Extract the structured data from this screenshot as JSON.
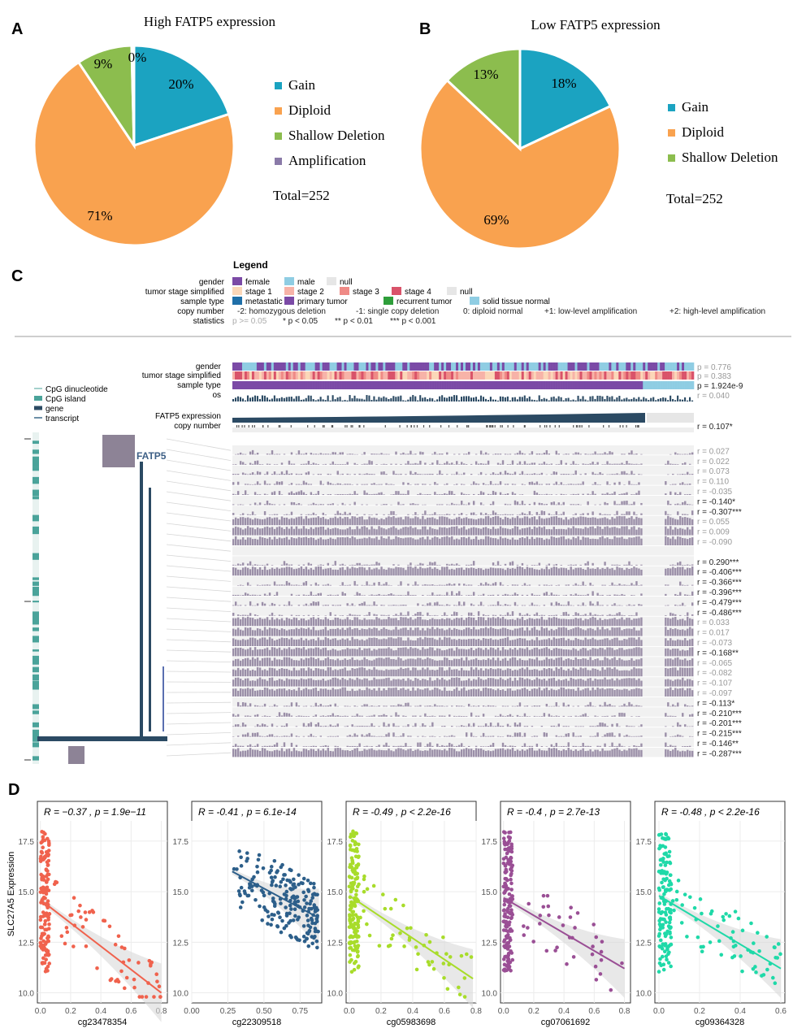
{
  "colors": {
    "gain": "#1ba3c1",
    "diploid": "#f9a24f",
    "shallow": "#8cbd4e",
    "amplification": "#8a7aa8",
    "purple": "#7b4aa6",
    "lightblue": "#8fcde3",
    "grey": "#e6e6e6",
    "bar": "#9b8fa8",
    "navy": "#2b4a63",
    "teal": "#4aa39a"
  },
  "panels": {
    "A": {
      "letter": "A"
    },
    "B": {
      "letter": "B"
    },
    "C": {
      "letter": "C"
    },
    "D": {
      "letter": "D"
    }
  },
  "chart_data": [
    {
      "type": "pie",
      "panel": "A",
      "title": "High FATP5 expression",
      "slices": [
        {
          "label": "Gain",
          "value": 20,
          "text": "20%",
          "color": "#1ba3c1"
        },
        {
          "label": "Diploid",
          "value": 71,
          "text": "71%",
          "color": "#f9a24f"
        },
        {
          "label": "Shallow Deletion",
          "value": 9,
          "text": "9%",
          "color": "#8cbd4e"
        },
        {
          "label": "Amplification",
          "value": 0.4,
          "text": "0%",
          "color": "#8a7aa8"
        }
      ],
      "legend": [
        "Gain",
        "Diploid",
        "Shallow Deletion",
        "Amplification"
      ],
      "total": "Total=252"
    },
    {
      "type": "pie",
      "panel": "B",
      "title": "Low FATP5 expression",
      "slices": [
        {
          "label": "Gain",
          "value": 18,
          "text": "18%",
          "color": "#1ba3c1"
        },
        {
          "label": "Diploid",
          "value": 69,
          "text": "69%",
          "color": "#f9a24f"
        },
        {
          "label": "Shallow Deletion",
          "value": 13,
          "text": "13%",
          "color": "#8cbd4e"
        }
      ],
      "legend": [
        "Gain",
        "Diploid",
        "Shallow Deletion"
      ],
      "total": "Total=252"
    },
    {
      "type": "heatmap",
      "panel": "C",
      "legend_title": "Legend",
      "legend_rows": [
        {
          "label": "gender",
          "items": [
            {
              "text": "female",
              "color": "#7b4aa6"
            },
            {
              "text": "male",
              "color": "#8fcde3"
            },
            {
              "text": "null",
              "color": "#e6e6e6"
            }
          ]
        },
        {
          "label": "tumor stage simplified",
          "items": [
            {
              "text": "stage 1",
              "color": "#fbd7b8"
            },
            {
              "text": "stage 2",
              "color": "#f7b3a8"
            },
            {
              "text": "stage 3",
              "color": "#ef8a86"
            },
            {
              "text": "stage 4",
              "color": "#d9536a"
            },
            {
              "text": "null",
              "color": "#e6e6e6"
            }
          ]
        },
        {
          "label": "sample type",
          "items": [
            {
              "text": "metastatic",
              "color": "#1f6fa8"
            },
            {
              "text": "primary tumor",
              "color": "#7b4aa6"
            },
            {
              "text": "recurrent tumor",
              "color": "#2e9e3a"
            },
            {
              "text": "solid tissue normal",
              "color": "#8fcde3"
            }
          ]
        },
        {
          "label": "copy number",
          "items": [
            {
              "text": "-2: homozygous deletion",
              "color": ""
            },
            {
              "text": "-1: single copy deletion",
              "color": ""
            },
            {
              "text": "0: diploid normal",
              "color": ""
            },
            {
              "text": "+1: low-level amplification",
              "color": ""
            },
            {
              "text": "+2: high-level amplification",
              "color": ""
            }
          ]
        },
        {
          "label": "statistics",
          "items": [
            {
              "text": "p >= 0.05",
              "color": ""
            },
            {
              "text": "* p < 0.05",
              "color": ""
            },
            {
              "text": "** p < 0.01",
              "color": ""
            },
            {
              "text": "*** p < 0.001",
              "color": ""
            }
          ]
        }
      ],
      "track_legend": [
        "CpG dinucleotide",
        "CpG island",
        "gene",
        "transcript"
      ],
      "gene_label": "FATP5",
      "annotation_tracks": [
        {
          "label": "gender",
          "stat": "p = 0.776",
          "significant": false
        },
        {
          "label": "tumor stage simplified",
          "stat": "p = 0.383",
          "significant": false
        },
        {
          "label": "sample type",
          "stat": "p = 1.924e-9",
          "significant": true
        },
        {
          "label": "os",
          "stat": "r = 0.040",
          "significant": false
        },
        {
          "label": "FATP5 expression",
          "stat": "",
          "significant": false
        },
        {
          "label": "copy number",
          "stat": "r = 0.107*",
          "significant": true
        }
      ],
      "probe_correlations": [
        {
          "stat": "r = 0.027",
          "significant": false
        },
        {
          "stat": "r = 0.022",
          "significant": false
        },
        {
          "stat": "r = 0.073",
          "significant": false
        },
        {
          "stat": "r = 0.110",
          "significant": false
        },
        {
          "stat": "r = -0.035",
          "significant": false
        },
        {
          "stat": "r = -0.140*",
          "significant": true
        },
        {
          "stat": "r = -0.307***",
          "significant": true
        },
        {
          "stat": "r = 0.055",
          "significant": false
        },
        {
          "stat": "r = 0.009",
          "significant": false
        },
        {
          "stat": "r = -0.090",
          "significant": false
        },
        {
          "stat": "",
          "significant": false
        },
        {
          "stat": "r = 0.290***",
          "significant": true
        },
        {
          "stat": "r = -0.406***",
          "significant": true
        },
        {
          "stat": "r = -0.366***",
          "significant": true
        },
        {
          "stat": "r = -0.396***",
          "significant": true
        },
        {
          "stat": "r = -0.479***",
          "significant": true
        },
        {
          "stat": "r = -0.486***",
          "significant": true
        },
        {
          "stat": "r = 0.033",
          "significant": false
        },
        {
          "stat": "r = 0.017",
          "significant": false
        },
        {
          "stat": "r = -0.073",
          "significant": false
        },
        {
          "stat": "r = -0.168**",
          "significant": true
        },
        {
          "stat": "r = -0.065",
          "significant": false
        },
        {
          "stat": "r = -0.082",
          "significant": false
        },
        {
          "stat": "r = -0.107",
          "significant": false
        },
        {
          "stat": "r = -0.097",
          "significant": false
        },
        {
          "stat": "r = -0.113*",
          "significant": true
        },
        {
          "stat": "r = -0.210***",
          "significant": true
        },
        {
          "stat": "r = -0.201***",
          "significant": true
        },
        {
          "stat": "r = -0.215***",
          "significant": true
        },
        {
          "stat": "r = -0.146**",
          "significant": true
        },
        {
          "stat": "r = -0.287***",
          "significant": true
        }
      ]
    },
    {
      "type": "scatter",
      "panel": "D",
      "ylabel": "SLC27A5 Expression",
      "ylim": [
        9.5,
        18.5
      ],
      "yticks": [
        10.0,
        12.5,
        15.0,
        17.5
      ],
      "plots": [
        {
          "stat": "R = −0.37 , p = 1.9e−11",
          "xlabel": "cg23478354",
          "color": "#f0624d",
          "xlim": [
            -0.02,
            0.84
          ],
          "xticks": [
            0.0,
            0.2,
            0.4,
            0.6,
            0.8
          ],
          "fit": [
            [
              0.0,
              14.6
            ],
            [
              0.8,
              10.0
            ]
          ],
          "pattern": "cluster"
        },
        {
          "stat": "R = -0.41 , p = 6.1e-14",
          "xlabel": "cg22309518",
          "color": "#2d5f8a",
          "xlim": [
            0.0,
            0.9
          ],
          "xticks": [
            0.0,
            0.25,
            0.5,
            0.75
          ],
          "fit": [
            [
              0.28,
              16.0
            ],
            [
              0.88,
              13.7
            ]
          ],
          "pattern": "spread"
        },
        {
          "stat": "R = -0.49 , p < 2.2e-16",
          "xlabel": "cg05983698",
          "color": "#a8dc2a",
          "xlim": [
            -0.02,
            0.8
          ],
          "xticks": [
            0.0,
            0.2,
            0.4,
            0.6,
            0.8
          ],
          "fit": [
            [
              0.0,
              14.8
            ],
            [
              0.78,
              10.7
            ]
          ],
          "pattern": "cluster"
        },
        {
          "stat": "R = -0.4 , p = 2.7e-13",
          "xlabel": "cg07061692",
          "color": "#9a4f95",
          "xlim": [
            -0.02,
            0.84
          ],
          "xticks": [
            0.0,
            0.2,
            0.4,
            0.6,
            0.8
          ],
          "fit": [
            [
              0.0,
              14.7
            ],
            [
              0.8,
              11.2
            ]
          ],
          "pattern": "cluster"
        },
        {
          "stat": "R = -0.48 , p < 2.2e-16",
          "xlabel": "cg09364328",
          "color": "#1fd9a8",
          "xlim": [
            -0.02,
            0.62
          ],
          "xticks": [
            0.0,
            0.2,
            0.4,
            0.6
          ],
          "fit": [
            [
              0.0,
              14.8
            ],
            [
              0.6,
              11.2
            ]
          ],
          "pattern": "cluster"
        }
      ]
    }
  ]
}
